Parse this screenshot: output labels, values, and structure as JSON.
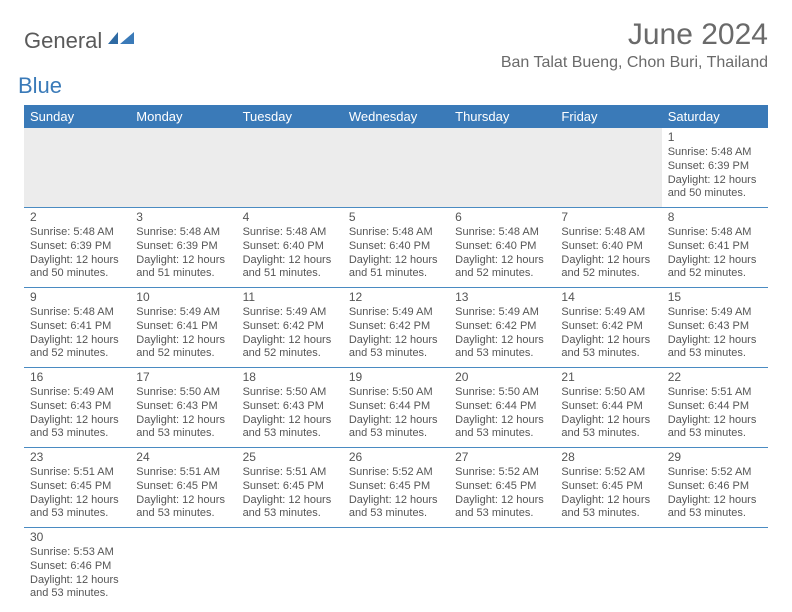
{
  "logo": {
    "general": "General",
    "blue": "Blue"
  },
  "title": "June 2024",
  "location": "Ban Talat Bueng, Chon Buri, Thailand",
  "colors": {
    "header_bg": "#3a7ab8",
    "header_text": "#ffffff",
    "border": "#4a8bc2",
    "text": "#555555",
    "blank_bg": "#ececec"
  },
  "days": [
    "Sunday",
    "Monday",
    "Tuesday",
    "Wednesday",
    "Thursday",
    "Friday",
    "Saturday"
  ],
  "weeks": [
    [
      null,
      null,
      null,
      null,
      null,
      null,
      {
        "n": "1",
        "sr": "Sunrise: 5:48 AM",
        "ss": "Sunset: 6:39 PM",
        "dl": "Daylight: 12 hours and 50 minutes."
      }
    ],
    [
      {
        "n": "2",
        "sr": "Sunrise: 5:48 AM",
        "ss": "Sunset: 6:39 PM",
        "dl": "Daylight: 12 hours and 50 minutes."
      },
      {
        "n": "3",
        "sr": "Sunrise: 5:48 AM",
        "ss": "Sunset: 6:39 PM",
        "dl": "Daylight: 12 hours and 51 minutes."
      },
      {
        "n": "4",
        "sr": "Sunrise: 5:48 AM",
        "ss": "Sunset: 6:40 PM",
        "dl": "Daylight: 12 hours and 51 minutes."
      },
      {
        "n": "5",
        "sr": "Sunrise: 5:48 AM",
        "ss": "Sunset: 6:40 PM",
        "dl": "Daylight: 12 hours and 51 minutes."
      },
      {
        "n": "6",
        "sr": "Sunrise: 5:48 AM",
        "ss": "Sunset: 6:40 PM",
        "dl": "Daylight: 12 hours and 52 minutes."
      },
      {
        "n": "7",
        "sr": "Sunrise: 5:48 AM",
        "ss": "Sunset: 6:40 PM",
        "dl": "Daylight: 12 hours and 52 minutes."
      },
      {
        "n": "8",
        "sr": "Sunrise: 5:48 AM",
        "ss": "Sunset: 6:41 PM",
        "dl": "Daylight: 12 hours and 52 minutes."
      }
    ],
    [
      {
        "n": "9",
        "sr": "Sunrise: 5:48 AM",
        "ss": "Sunset: 6:41 PM",
        "dl": "Daylight: 12 hours and 52 minutes."
      },
      {
        "n": "10",
        "sr": "Sunrise: 5:49 AM",
        "ss": "Sunset: 6:41 PM",
        "dl": "Daylight: 12 hours and 52 minutes."
      },
      {
        "n": "11",
        "sr": "Sunrise: 5:49 AM",
        "ss": "Sunset: 6:42 PM",
        "dl": "Daylight: 12 hours and 52 minutes."
      },
      {
        "n": "12",
        "sr": "Sunrise: 5:49 AM",
        "ss": "Sunset: 6:42 PM",
        "dl": "Daylight: 12 hours and 53 minutes."
      },
      {
        "n": "13",
        "sr": "Sunrise: 5:49 AM",
        "ss": "Sunset: 6:42 PM",
        "dl": "Daylight: 12 hours and 53 minutes."
      },
      {
        "n": "14",
        "sr": "Sunrise: 5:49 AM",
        "ss": "Sunset: 6:42 PM",
        "dl": "Daylight: 12 hours and 53 minutes."
      },
      {
        "n": "15",
        "sr": "Sunrise: 5:49 AM",
        "ss": "Sunset: 6:43 PM",
        "dl": "Daylight: 12 hours and 53 minutes."
      }
    ],
    [
      {
        "n": "16",
        "sr": "Sunrise: 5:49 AM",
        "ss": "Sunset: 6:43 PM",
        "dl": "Daylight: 12 hours and 53 minutes."
      },
      {
        "n": "17",
        "sr": "Sunrise: 5:50 AM",
        "ss": "Sunset: 6:43 PM",
        "dl": "Daylight: 12 hours and 53 minutes."
      },
      {
        "n": "18",
        "sr": "Sunrise: 5:50 AM",
        "ss": "Sunset: 6:43 PM",
        "dl": "Daylight: 12 hours and 53 minutes."
      },
      {
        "n": "19",
        "sr": "Sunrise: 5:50 AM",
        "ss": "Sunset: 6:44 PM",
        "dl": "Daylight: 12 hours and 53 minutes."
      },
      {
        "n": "20",
        "sr": "Sunrise: 5:50 AM",
        "ss": "Sunset: 6:44 PM",
        "dl": "Daylight: 12 hours and 53 minutes."
      },
      {
        "n": "21",
        "sr": "Sunrise: 5:50 AM",
        "ss": "Sunset: 6:44 PM",
        "dl": "Daylight: 12 hours and 53 minutes."
      },
      {
        "n": "22",
        "sr": "Sunrise: 5:51 AM",
        "ss": "Sunset: 6:44 PM",
        "dl": "Daylight: 12 hours and 53 minutes."
      }
    ],
    [
      {
        "n": "23",
        "sr": "Sunrise: 5:51 AM",
        "ss": "Sunset: 6:45 PM",
        "dl": "Daylight: 12 hours and 53 minutes."
      },
      {
        "n": "24",
        "sr": "Sunrise: 5:51 AM",
        "ss": "Sunset: 6:45 PM",
        "dl": "Daylight: 12 hours and 53 minutes."
      },
      {
        "n": "25",
        "sr": "Sunrise: 5:51 AM",
        "ss": "Sunset: 6:45 PM",
        "dl": "Daylight: 12 hours and 53 minutes."
      },
      {
        "n": "26",
        "sr": "Sunrise: 5:52 AM",
        "ss": "Sunset: 6:45 PM",
        "dl": "Daylight: 12 hours and 53 minutes."
      },
      {
        "n": "27",
        "sr": "Sunrise: 5:52 AM",
        "ss": "Sunset: 6:45 PM",
        "dl": "Daylight: 12 hours and 53 minutes."
      },
      {
        "n": "28",
        "sr": "Sunrise: 5:52 AM",
        "ss": "Sunset: 6:45 PM",
        "dl": "Daylight: 12 hours and 53 minutes."
      },
      {
        "n": "29",
        "sr": "Sunrise: 5:52 AM",
        "ss": "Sunset: 6:46 PM",
        "dl": "Daylight: 12 hours and 53 minutes."
      }
    ],
    [
      {
        "n": "30",
        "sr": "Sunrise: 5:53 AM",
        "ss": "Sunset: 6:46 PM",
        "dl": "Daylight: 12 hours and 53 minutes."
      },
      null,
      null,
      null,
      null,
      null,
      null
    ]
  ]
}
